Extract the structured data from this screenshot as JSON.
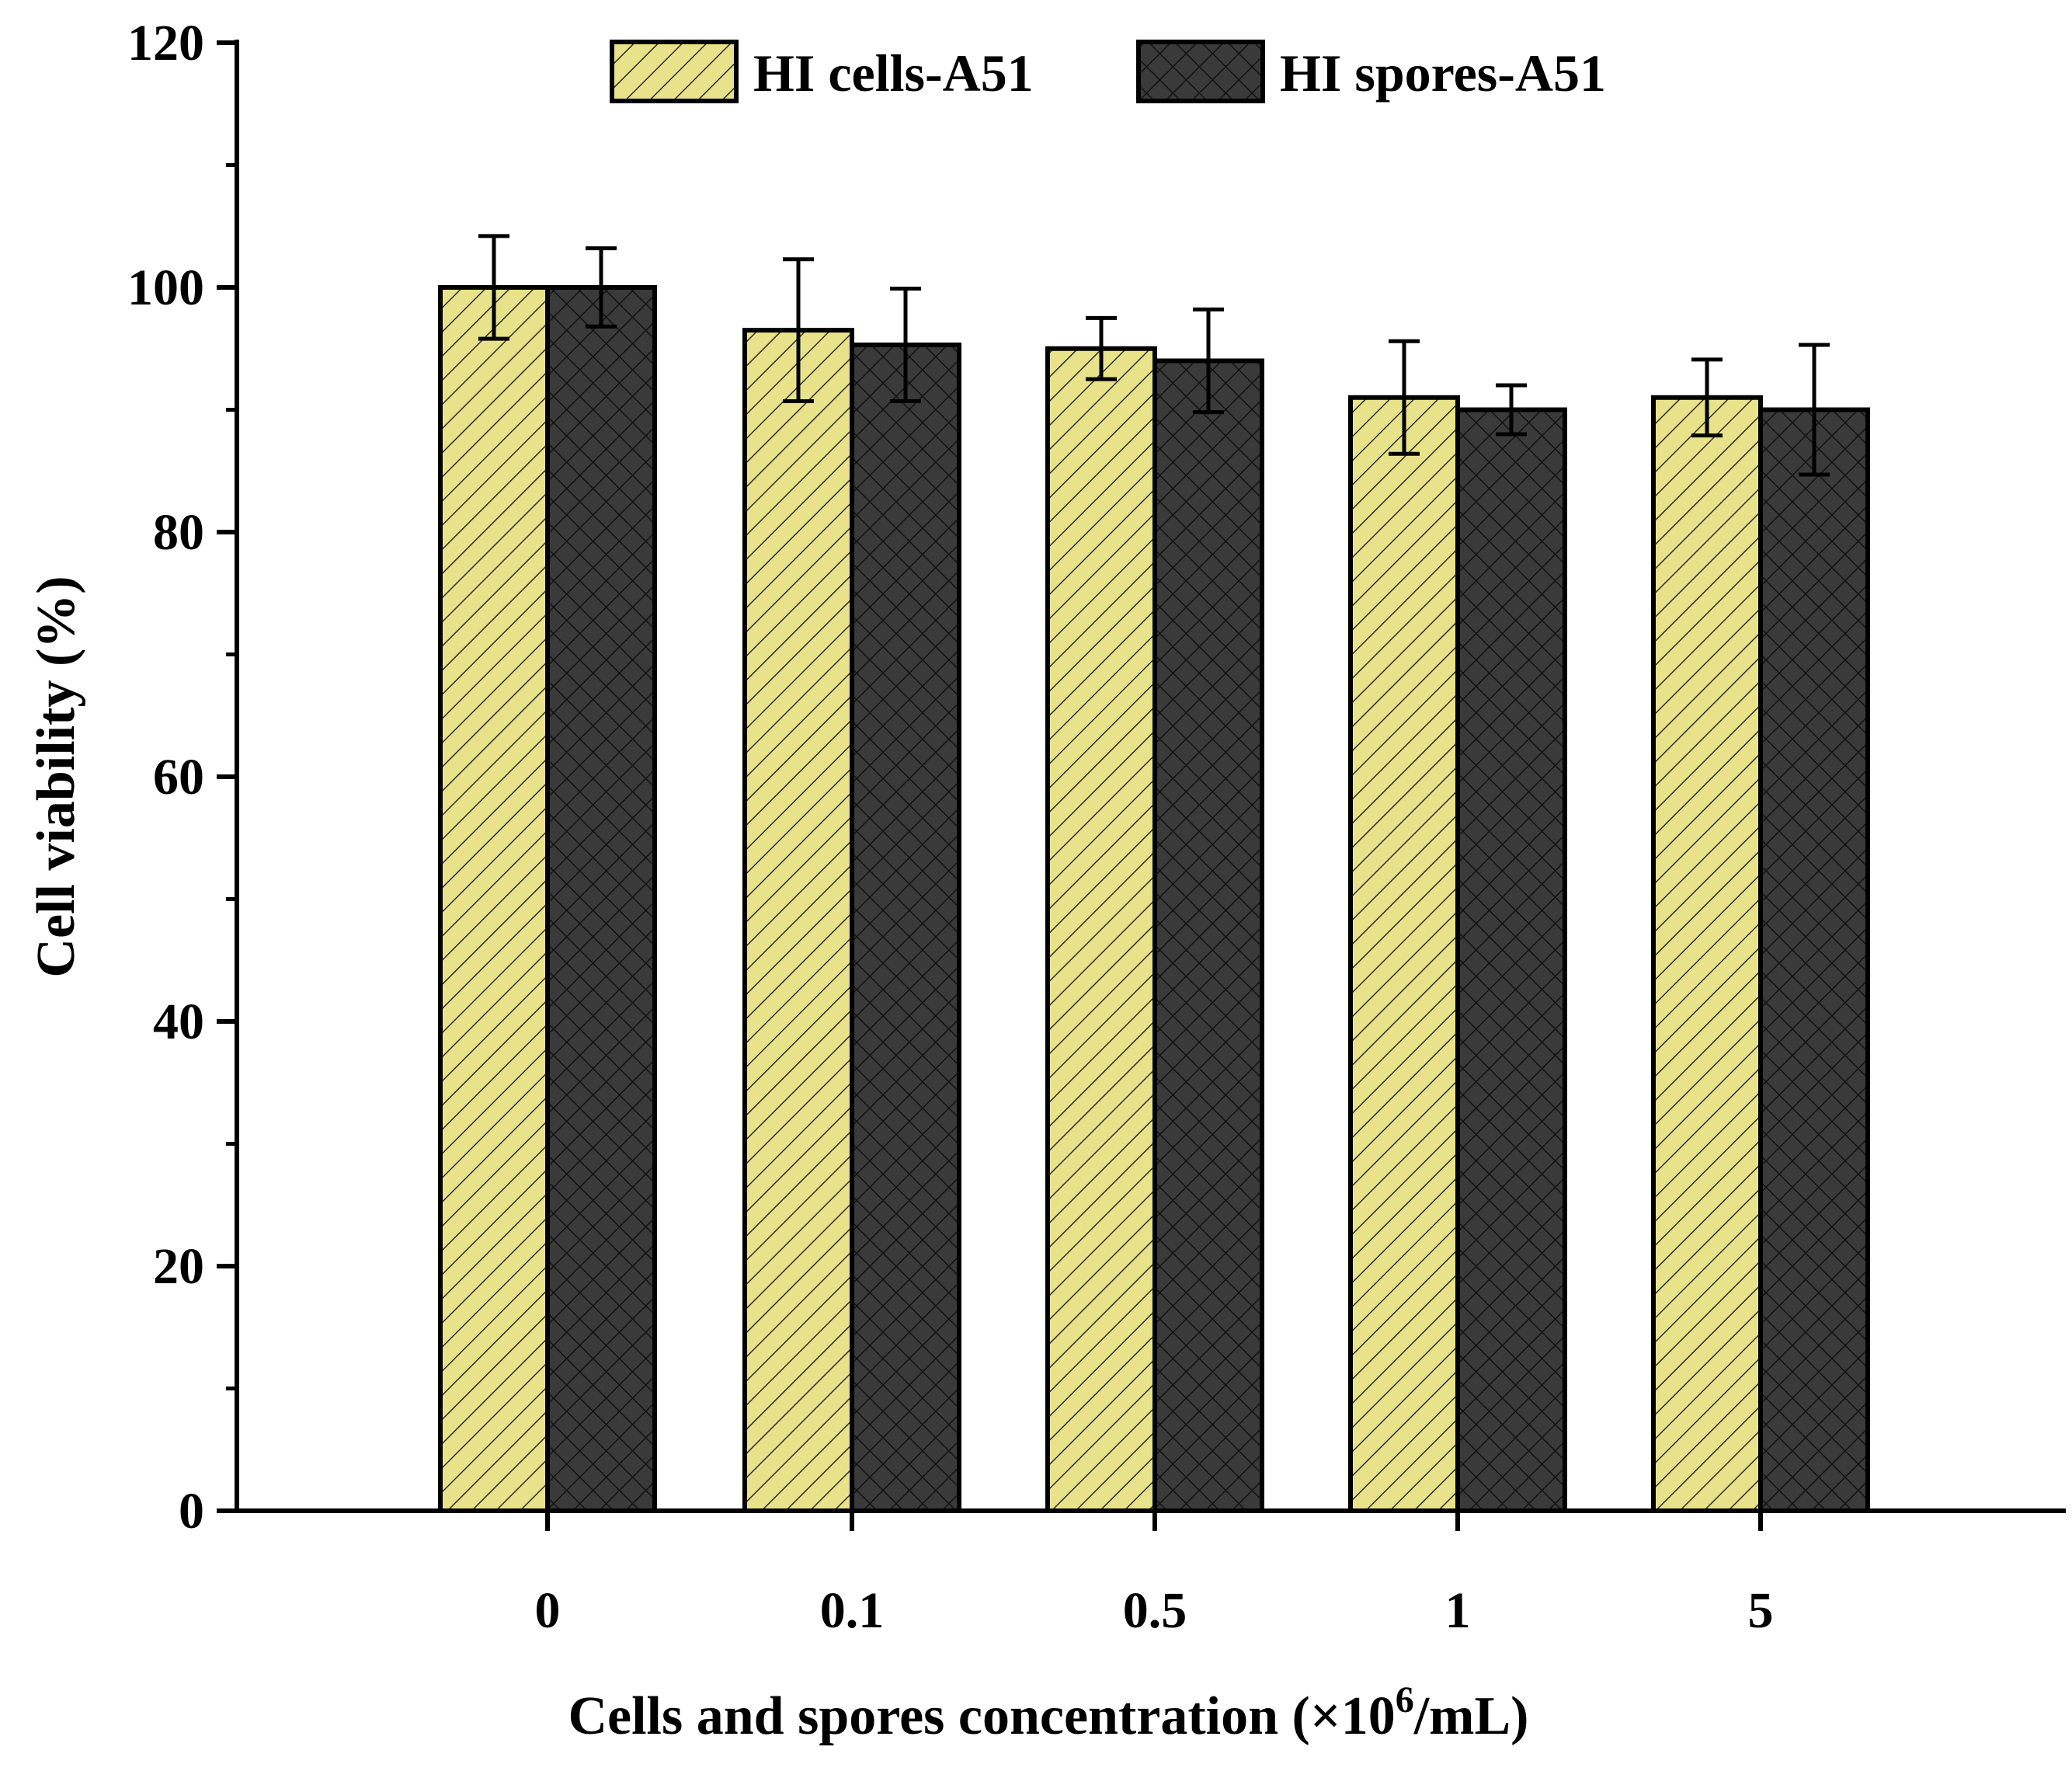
{
  "chart_data": {
    "type": "bar",
    "title": "",
    "xlabel_main": "Cells and spores concentration (×10",
    "xlabel_sup": "6",
    "xlabel_tail": "/mL)",
    "ylabel": "Cell viability (%)",
    "ylim": [
      0,
      120
    ],
    "yticks": [
      "0",
      "20",
      "40",
      "60",
      "80",
      "100",
      "120"
    ],
    "categories": [
      "0",
      "0.1",
      "0.5",
      "1",
      "5"
    ],
    "series": [
      {
        "name": "HI cells-A51",
        "color": "#e8e38a",
        "hatch": "diagonal",
        "values": [
          100,
          96.5,
          95,
          91,
          91
        ],
        "errors": [
          4.2,
          5.8,
          2.5,
          4.6,
          3.1
        ]
      },
      {
        "name": "HI spores-A51",
        "color": "#3a3a3a",
        "hatch": "crosshatch",
        "values": [
          100,
          95.3,
          94,
          90,
          90
        ],
        "errors": [
          3.2,
          4.6,
          4.2,
          2.0,
          5.3
        ]
      }
    ],
    "legend_position": "top"
  }
}
